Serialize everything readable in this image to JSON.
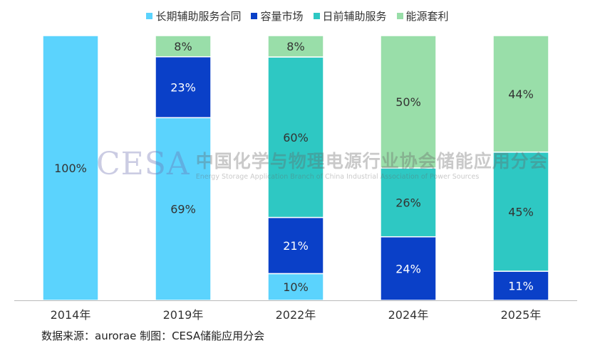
{
  "chart_data": {
    "type": "bar",
    "stacked": true,
    "categories": [
      "2014年",
      "2019年",
      "2022年",
      "2024年",
      "2025年"
    ],
    "series": [
      {
        "name": "长期辅助服务合同",
        "color": "#5bd3fd",
        "label_color": "#333333",
        "values": [
          100,
          69,
          10,
          0,
          0
        ]
      },
      {
        "name": "容量市场",
        "color": "#0a40c8",
        "label_color": "#ffffff",
        "values": [
          0,
          23,
          21,
          24,
          11
        ]
      },
      {
        "name": "日前辅助服务",
        "color": "#2ec8c3",
        "label_color": "#333333",
        "values": [
          0,
          0,
          60,
          26,
          45
        ]
      },
      {
        "name": "能源套利",
        "color": "#99dea9",
        "label_color": "#333333",
        "values": [
          0,
          8,
          8,
          50,
          44
        ]
      }
    ],
    "ylim": [
      0,
      100
    ],
    "legend": "top",
    "title": "",
    "xlabel": "",
    "ylabel": ""
  },
  "watermark": {
    "logo": "CESA",
    "cn": "中国化学与物理电源行业协会储能应用分会",
    "en": "Energy Storage Application Branch of China Industrial Association of Power Sources"
  },
  "source": "数据来源：aurorae  制图：CESA储能应用分会"
}
